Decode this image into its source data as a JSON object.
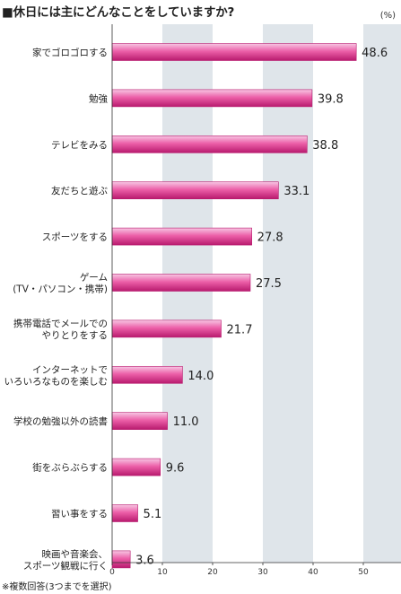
{
  "title": "■休日には主にどんなことをしていますか?",
  "unit": "(%)",
  "note": "※複数回答(3つまでを選択)",
  "colors": {
    "bar_top": "#f7c6e3",
    "bar_mid": "#ec5fa8",
    "bar_bottom": "#b81a6e",
    "band": "#dfe5ea",
    "axis": "#333333"
  },
  "chart_data": {
    "type": "bar",
    "orientation": "horizontal",
    "title": "■休日には主にどんなことをしていますか?",
    "unit": "(%)",
    "categories": [
      "家でゴロゴロする",
      "勉強",
      "テレビをみる",
      "友だちと遊ぶ",
      "スポーツをする",
      "ゲーム\n(TV・パソコン・携帯)",
      "携帯電話でメールでの\nやりとりをする",
      "インターネットで\nいろいろなものを楽しむ",
      "学校の勉強以外の読書",
      "街をぶらぶらする",
      "習い事をする",
      "映画や音楽会、\nスポーツ観戦に行く"
    ],
    "values": [
      48.6,
      39.8,
      38.8,
      33.1,
      27.8,
      27.5,
      21.7,
      14.0,
      11.0,
      9.6,
      5.1,
      3.6
    ],
    "value_labels": [
      "48.6",
      "39.8",
      "38.8",
      "33.1",
      "27.8",
      "27.5",
      "21.7",
      "14.0",
      "11.0",
      "9.6",
      "5.1",
      "3.6"
    ],
    "xlim": [
      0,
      58
    ],
    "x_ticks": [
      "0",
      "10",
      "20",
      "30",
      "40",
      "50"
    ],
    "grid": "alternating vertical bands"
  }
}
